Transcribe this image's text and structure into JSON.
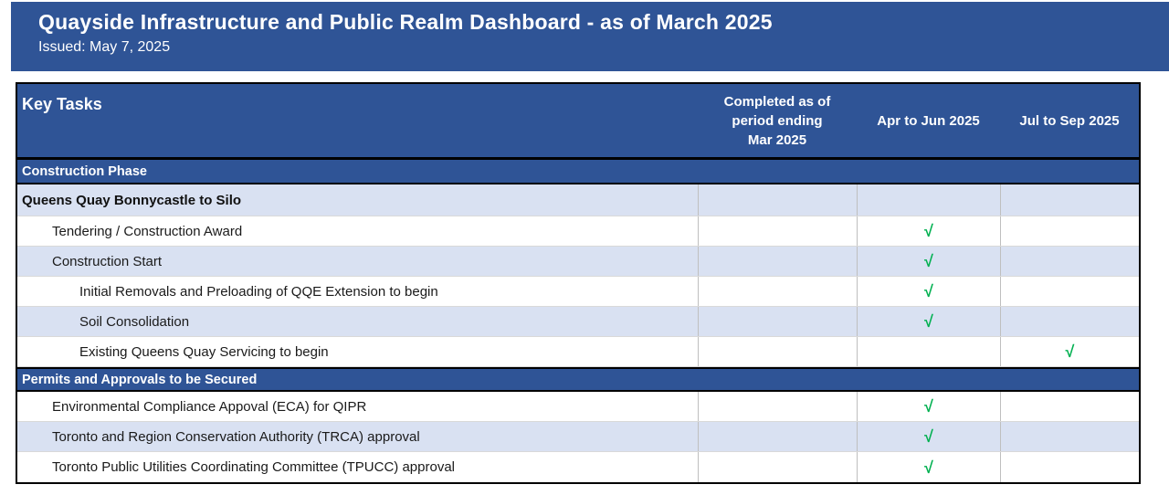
{
  "banner": {
    "title": "Quayside Infrastructure and Public Realm Dashboard - as of March 2025",
    "issued": "Issued: May 7, 2025"
  },
  "colors": {
    "banner_blue": "#2F5496",
    "row_alt_blue": "#D9E1F2",
    "check_green": "#00B050",
    "grid_gray": "#BFBFBF"
  },
  "table": {
    "header": {
      "key_tasks": "Key Tasks",
      "col1_line1": "Completed as of",
      "col1_line2": "period ending",
      "col1_line3": "Mar 2025",
      "col2": "Apr to Jun 2025",
      "col3": "Jul to Sep 2025"
    },
    "rows": [
      {
        "type": "section",
        "label": "Construction Phase"
      },
      {
        "type": "group",
        "label": "Queens Quay Bonnycastle to Silo",
        "checks": {
          "completed": "",
          "apr_jun": "",
          "jul_sep": ""
        }
      },
      {
        "type": "task",
        "label": "Tendering / Construction Award",
        "checks": {
          "completed": "",
          "apr_jun": "√",
          "jul_sep": ""
        }
      },
      {
        "type": "task",
        "label": "Construction Start",
        "checks": {
          "completed": "",
          "apr_jun": "√",
          "jul_sep": ""
        }
      },
      {
        "type": "task",
        "label": "Initial Removals and Preloading of QQE Extension to begin",
        "checks": {
          "completed": "",
          "apr_jun": "√",
          "jul_sep": ""
        }
      },
      {
        "type": "task",
        "label": "Soil Consolidation",
        "checks": {
          "completed": "",
          "apr_jun": "√",
          "jul_sep": ""
        }
      },
      {
        "type": "task",
        "label": "Existing Queens Quay Servicing to begin",
        "checks": {
          "completed": "",
          "apr_jun": "",
          "jul_sep": "√"
        }
      },
      {
        "type": "section",
        "label": "Permits and Approvals to be Secured"
      },
      {
        "type": "task",
        "label": "Environmental Compliance Appoval (ECA) for QIPR",
        "checks": {
          "completed": "",
          "apr_jun": "√",
          "jul_sep": ""
        }
      },
      {
        "type": "task",
        "label": "Toronto and Region Conservation Authority (TRCA) approval",
        "checks": {
          "completed": "",
          "apr_jun": "√",
          "jul_sep": ""
        }
      },
      {
        "type": "task",
        "label": "Toronto Public Utilities Coordinating Committee (TPUCC) approval",
        "checks": {
          "completed": "",
          "apr_jun": "√",
          "jul_sep": ""
        }
      }
    ]
  }
}
